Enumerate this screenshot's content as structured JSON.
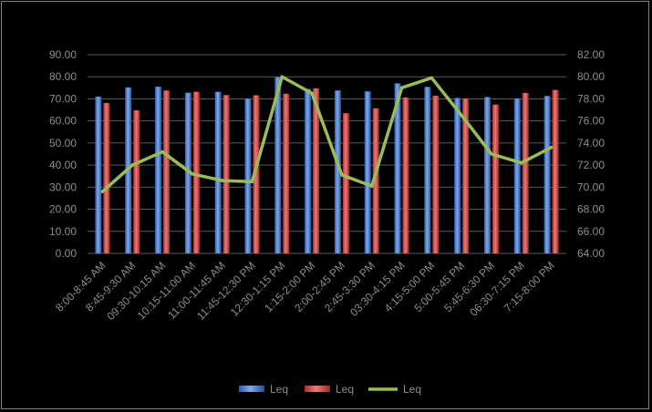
{
  "chart_data": {
    "type": "bar",
    "categories": [
      "8:00-8:45 AM",
      "8:45-9:30 AM",
      "09:30-10:15 AM",
      "10:15-11:00 AM",
      "11:00-11:45 AM",
      "11:45-12:30 PM",
      "12:30-1:15 PM",
      "1:15-2:00 PM",
      "2:00-2:45 PM",
      "2:45-3:30 PM",
      "03:30-4:15 PM",
      "4:15-5:00 PM",
      "5:00-5:45 PM",
      "5:45-6:30 PM",
      "06:30-7:15 PM",
      "7:15-8:00 PM"
    ],
    "series": [
      {
        "name": "Leq",
        "type": "bar",
        "axis": "left",
        "color": "#4a7fd4",
        "values": [
          71.0,
          75.2,
          75.5,
          72.8,
          73.2,
          70.0,
          79.8,
          74.5,
          73.8,
          73.4,
          77.0,
          75.4,
          70.4,
          70.8,
          70.2,
          71.3
        ]
      },
      {
        "name": "Leq",
        "type": "bar",
        "axis": "left",
        "color": "#d24a48",
        "values": [
          68.1,
          64.8,
          73.8,
          73.2,
          71.7,
          71.6,
          72.3,
          74.8,
          63.5,
          65.7,
          70.6,
          71.4,
          70.2,
          67.4,
          72.7,
          74.0
        ]
      },
      {
        "name": "Leq",
        "type": "line",
        "axis": "right",
        "color": "#9bbb59",
        "values": [
          69.6,
          72.0,
          73.2,
          71.2,
          70.6,
          70.5,
          80.0,
          78.5,
          71.1,
          70.1,
          79.0,
          79.9,
          76.5,
          73.0,
          72.2,
          73.6
        ]
      }
    ],
    "y_left": {
      "min": 0,
      "max": 90,
      "step": 10,
      "ticks": [
        "0.00",
        "10.00",
        "20.00",
        "30.00",
        "40.00",
        "50.00",
        "60.00",
        "70.00",
        "80.00",
        "90.00"
      ]
    },
    "y_right": {
      "min": 64,
      "max": 82,
      "step": 2,
      "ticks": [
        "64.00",
        "66.00",
        "68.00",
        "70.00",
        "72.00",
        "74.00",
        "76.00",
        "78.00",
        "80.00",
        "82.00"
      ]
    },
    "grid": true,
    "legend_position": "bottom",
    "title": "",
    "xlabel": "",
    "ylabel": ""
  }
}
